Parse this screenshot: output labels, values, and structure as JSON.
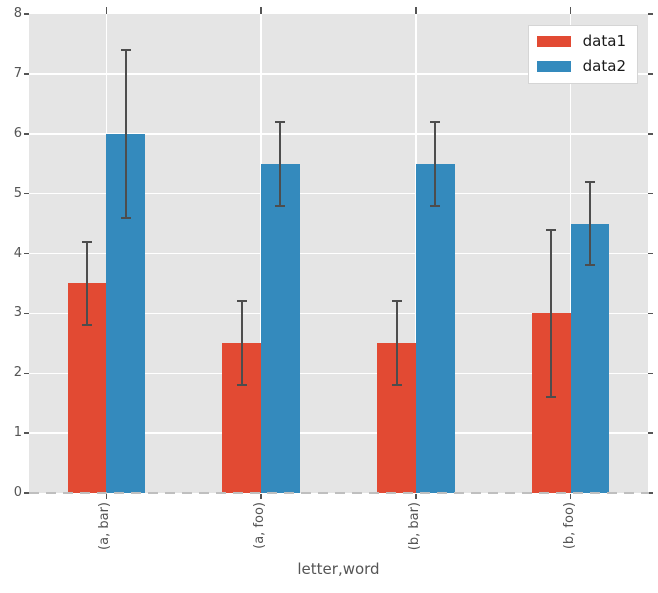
{
  "chart_data": {
    "type": "bar",
    "title": "",
    "xlabel": "letter,word",
    "ylabel": "",
    "categories": [
      "(a, bar)",
      "(a, foo)",
      "(b, bar)",
      "(b, foo)"
    ],
    "series": [
      {
        "name": "data1",
        "color": "#E24A33",
        "values": [
          3.5,
          2.5,
          2.5,
          3.0
        ],
        "errors": [
          0.7,
          0.7,
          0.7,
          1.4
        ]
      },
      {
        "name": "data2",
        "color": "#348ABD",
        "values": [
          6.0,
          5.5,
          5.5,
          4.5
        ],
        "errors": [
          1.4,
          0.7,
          0.7,
          0.7
        ]
      }
    ],
    "ylim": [
      0,
      8
    ],
    "yticks": [
      0,
      1,
      2,
      3,
      4,
      5,
      6,
      7,
      8
    ],
    "grid": true,
    "legend_position": "upper right",
    "colors": {
      "plot_background": "#E5E5E5",
      "gridline": "#FFFFFF",
      "errorbar": "#4D4D4D",
      "tick_mark": "#555555",
      "tick_label": "#555555",
      "axis_label": "#555555",
      "legend_text": "#1A1A1A",
      "legend_border": "#D5D5D5",
      "zero_dash": "#BFBFBF"
    }
  }
}
